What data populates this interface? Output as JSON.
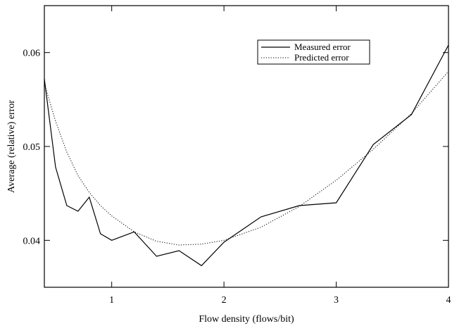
{
  "chart_data": {
    "type": "line",
    "title": "",
    "xlabel": "Flow density (flows/bit)",
    "ylabel": "Average (relative) error",
    "xlim": [
      0.4,
      4.0
    ],
    "ylim": [
      0.035,
      0.065
    ],
    "x_ticks": [
      1,
      2,
      3,
      4
    ],
    "x_tick_labels": [
      "1",
      "2",
      "3",
      "4"
    ],
    "y_ticks": [
      0.04,
      0.05,
      0.06
    ],
    "y_tick_labels": [
      "0.04",
      "0.05",
      "0.06"
    ],
    "grid": false,
    "legend_position": "top-right",
    "series": [
      {
        "name": "Measured error",
        "style": "solid",
        "color": "#000000",
        "x": [
          0.4,
          0.5,
          0.6,
          0.7,
          0.8,
          0.9,
          1.0,
          1.2,
          1.4,
          1.6,
          1.8,
          2.0,
          2.33,
          2.67,
          3.0,
          3.33,
          3.67,
          4.0
        ],
        "y": [
          0.0572,
          0.0478,
          0.0437,
          0.0431,
          0.0446,
          0.0407,
          0.04,
          0.0409,
          0.0383,
          0.0389,
          0.0373,
          0.0398,
          0.0425,
          0.0437,
          0.044,
          0.0502,
          0.0534,
          0.0608
        ]
      },
      {
        "name": "Predicted error",
        "style": "dotted",
        "color": "#000000",
        "x": [
          0.4,
          0.5,
          0.6,
          0.7,
          0.8,
          0.9,
          1.0,
          1.2,
          1.4,
          1.6,
          1.8,
          2.0,
          2.33,
          2.67,
          3.0,
          3.33,
          3.67,
          4.0
        ],
        "y": [
          0.0567,
          0.0527,
          0.0494,
          0.0469,
          0.0451,
          0.0437,
          0.0426,
          0.0409,
          0.0399,
          0.0395,
          0.0396,
          0.04,
          0.0414,
          0.0436,
          0.0464,
          0.0497,
          0.0535,
          0.058
        ]
      }
    ]
  }
}
